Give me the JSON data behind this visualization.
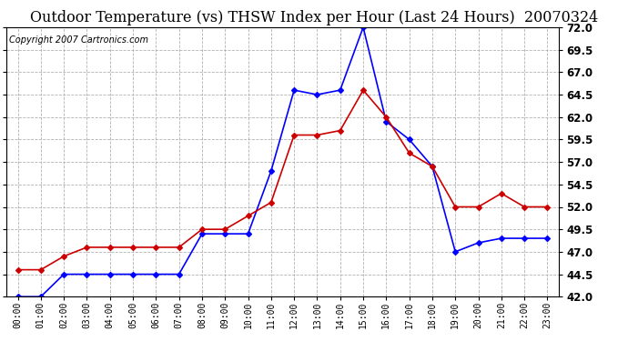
{
  "title": "Outdoor Temperature (vs) THSW Index per Hour (Last 24 Hours)  20070324",
  "copyright": "Copyright 2007 Cartronics.com",
  "hours": [
    "00:00",
    "01:00",
    "02:00",
    "03:00",
    "04:00",
    "05:00",
    "06:00",
    "07:00",
    "08:00",
    "09:00",
    "10:00",
    "11:00",
    "12:00",
    "13:00",
    "14:00",
    "15:00",
    "16:00",
    "17:00",
    "18:00",
    "19:00",
    "20:00",
    "21:00",
    "22:00",
    "23:00"
  ],
  "blue_data": [
    42.0,
    42.0,
    44.5,
    44.5,
    44.5,
    44.5,
    44.5,
    44.5,
    49.0,
    49.0,
    49.0,
    56.0,
    65.0,
    64.5,
    65.0,
    72.0,
    61.5,
    59.5,
    56.5,
    47.0,
    48.0,
    48.5,
    48.5,
    48.5
  ],
  "red_data": [
    45.0,
    45.0,
    46.5,
    47.5,
    47.5,
    47.5,
    47.5,
    47.5,
    49.5,
    49.5,
    51.0,
    52.5,
    60.0,
    60.0,
    60.5,
    65.0,
    62.0,
    58.0,
    56.5,
    52.0,
    52.0,
    53.5,
    52.0,
    52.0
  ],
  "ylim": [
    42.0,
    72.0
  ],
  "yticks": [
    42.0,
    44.5,
    47.0,
    49.5,
    52.0,
    54.5,
    57.0,
    59.5,
    62.0,
    64.5,
    67.0,
    69.5,
    72.0
  ],
  "blue_color": "#0000ff",
  "red_color": "#cc0000",
  "bg_color": "#ffffff",
  "plot_bg_color": "#ffffff",
  "grid_color": "#aaaaaa",
  "title_fontsize": 11.5,
  "copyright_fontsize": 7
}
